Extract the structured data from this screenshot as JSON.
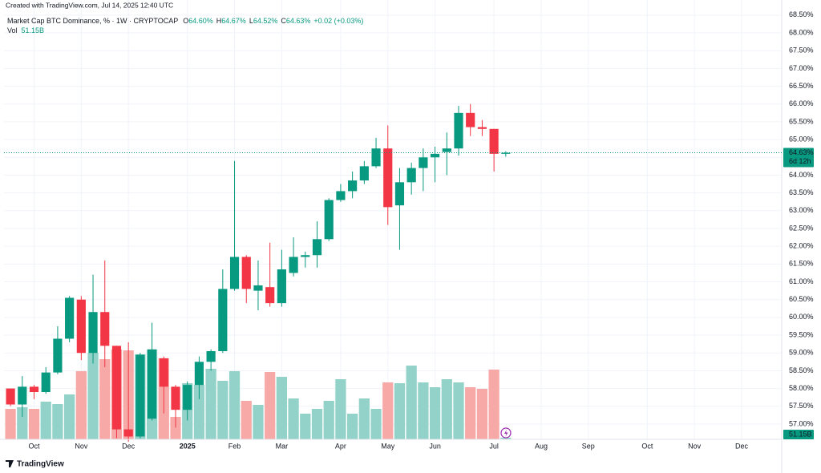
{
  "chart_data": {
    "type": "candlestick",
    "created": "Created with TradingView.com, Jul 14, 2025 12:40 UTC",
    "symbol": "Market Cap BTC Dominance, % · 1W · CRYPTOCAP",
    "legend": [
      {
        "label": "O",
        "value": "64.60%"
      },
      {
        "label": "H",
        "value": "64.67%"
      },
      {
        "label": "L",
        "value": "64.52%"
      },
      {
        "label": "C",
        "value": "64.63%"
      }
    ],
    "change": "+0.02 (+0.03%)",
    "volume_title": "Vol",
    "volume_last": "51.15B",
    "countdown": "6d 12h",
    "brand": "TradingView",
    "categories": [
      null,
      null,
      null,
      null,
      null,
      null,
      null,
      null,
      null,
      null,
      null,
      null,
      null,
      null,
      null,
      null,
      null,
      null,
      null,
      null,
      null,
      null,
      null,
      null,
      null,
      null,
      null,
      null,
      null,
      null,
      null,
      null,
      null,
      null,
      null,
      null,
      null,
      null,
      null,
      null,
      null,
      null,
      null
    ],
    "open": [
      58.0,
      57.55,
      58.05,
      57.9,
      58.45,
      59.4,
      60.5,
      59.0,
      60.15,
      59.2,
      56.85,
      56.65,
      57.15,
      58.85,
      58.05,
      57.4,
      58.1,
      58.75,
      59.05,
      60.8,
      61.7,
      60.75,
      60.85,
      60.4,
      61.25,
      61.7,
      61.75,
      62.2,
      63.3,
      63.55,
      63.85,
      64.25,
      64.75,
      63.15,
      63.8,
      64.2,
      64.5,
      64.65,
      64.75,
      65.75,
      65.35,
      65.3,
      64.6
    ],
    "high": [
      58.0,
      58.35,
      58.1,
      58.6,
      59.75,
      60.6,
      60.6,
      61.2,
      61.6,
      59.2,
      59.3,
      59.0,
      59.85,
      58.9,
      58.1,
      58.2,
      58.9,
      59.1,
      61.35,
      64.4,
      61.75,
      61.6,
      62.1,
      61.9,
      62.25,
      61.85,
      62.7,
      63.35,
      63.75,
      64.1,
      64.4,
      65.05,
      65.4,
      64.2,
      64.35,
      64.75,
      64.8,
      65.2,
      65.95,
      66.0,
      65.55,
      65.3,
      64.67
    ],
    "low": [
      57.5,
      57.2,
      57.7,
      57.85,
      58.4,
      59.3,
      58.8,
      58.7,
      58.6,
      56.6,
      56.5,
      56.6,
      57.1,
      57.3,
      56.9,
      57.1,
      57.7,
      58.5,
      59.0,
      60.75,
      60.4,
      60.2,
      60.3,
      60.3,
      61.15,
      61.4,
      61.4,
      62.15,
      63.25,
      63.35,
      63.75,
      64.2,
      62.6,
      61.9,
      63.45,
      63.55,
      63.8,
      64.0,
      64.55,
      65.1,
      65.1,
      64.1,
      64.52
    ],
    "close": [
      57.55,
      58.05,
      57.9,
      58.45,
      59.4,
      60.55,
      59.0,
      60.15,
      59.2,
      56.85,
      56.65,
      58.95,
      59.1,
      58.05,
      57.4,
      58.1,
      58.75,
      59.05,
      60.8,
      61.7,
      60.8,
      60.9,
      60.4,
      61.35,
      61.7,
      61.75,
      62.2,
      63.3,
      63.55,
      63.85,
      64.25,
      64.75,
      63.1,
      63.8,
      64.2,
      64.5,
      64.6,
      64.75,
      65.75,
      65.35,
      65.3,
      64.6,
      64.63
    ],
    "volume": [
      950,
      1000,
      950,
      1175,
      1100,
      1400,
      2125,
      2700,
      2500,
      2800,
      2775,
      2650,
      2800,
      2525,
      700,
      1750,
      1700,
      2200,
      1825,
      2125,
      1200,
      1075,
      2100,
      1950,
      1275,
      800,
      950,
      1200,
      1875,
      800,
      1275,
      950,
      1775,
      1750,
      2300,
      1775,
      1625,
      1875,
      1775,
      1625,
      1575,
      2175,
      51.15
    ],
    "volume_ylim": [
      0,
      13450
    ],
    "up_color": "#089981",
    "down_color": "#f23645",
    "up_volume_color": "#92d2c8",
    "down_volume_color": "#f7a9a7",
    "xlim": [
      -0.55,
      65.4
    ],
    "xticks": [
      {
        "value": 2,
        "label": "Oct"
      },
      {
        "value": 6,
        "label": "Nov"
      },
      {
        "value": 10,
        "label": "Dec"
      },
      {
        "value": 15,
        "label": "2025"
      },
      {
        "value": 19,
        "label": "Feb"
      },
      {
        "value": 23,
        "label": "Mar"
      },
      {
        "value": 28,
        "label": "Apr"
      },
      {
        "value": 32,
        "label": "May"
      },
      {
        "value": 36,
        "label": "Jun"
      },
      {
        "value": 41,
        "label": "Jul"
      },
      {
        "value": 45,
        "label": "Aug"
      },
      {
        "value": 49,
        "label": "Sep"
      },
      {
        "value": 54,
        "label": "Oct"
      },
      {
        "value": 58,
        "label": "Nov"
      },
      {
        "value": 62,
        "label": "Dec"
      }
    ],
    "ylim": [
      56.57,
      68.7
    ],
    "yticks": [
      {
        "value": 68.5,
        "label": "68.50%"
      },
      {
        "value": 68,
        "label": "68.00%"
      },
      {
        "value": 67.5,
        "label": "67.50%"
      },
      {
        "value": 67,
        "label": "67.00%"
      },
      {
        "value": 66.5,
        "label": "66.50%"
      },
      {
        "value": 66,
        "label": "66.00%"
      },
      {
        "value": 65.5,
        "label": "65.50%"
      },
      {
        "value": 65,
        "label": "65.00%"
      },
      {
        "value": 64.5,
        "label": "64.50%"
      },
      {
        "value": 64,
        "label": "64.00%"
      },
      {
        "value": 63.5,
        "label": "63.50%"
      },
      {
        "value": 63,
        "label": "63.00%"
      },
      {
        "value": 62.5,
        "label": "62.50%"
      },
      {
        "value": 62,
        "label": "62.00%"
      },
      {
        "value": 61.5,
        "label": "61.50%"
      },
      {
        "value": 61,
        "label": "61.00%"
      },
      {
        "value": 60.5,
        "label": "60.50%"
      },
      {
        "value": 60,
        "label": "60.00%"
      },
      {
        "value": 59.5,
        "label": "59.50%"
      },
      {
        "value": 59,
        "label": "59.00%"
      },
      {
        "value": 58.5,
        "label": "58.50%"
      },
      {
        "value": 58,
        "label": "58.00%"
      },
      {
        "value": 57.5,
        "label": "57.50%"
      },
      {
        "value": 57,
        "label": "57.00%"
      }
    ],
    "grid": true
  }
}
